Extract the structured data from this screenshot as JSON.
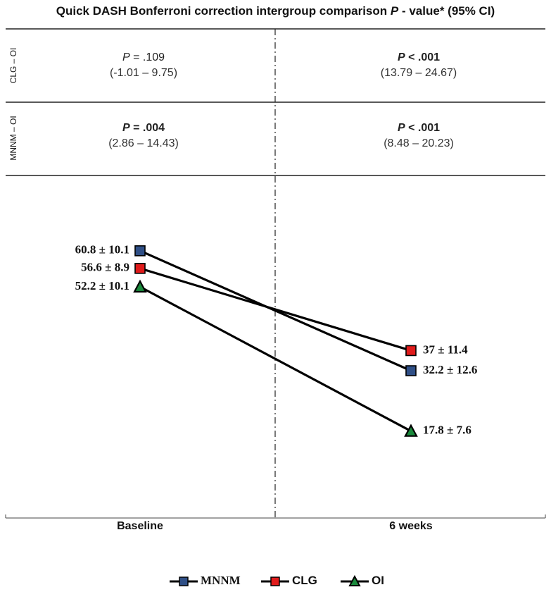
{
  "header": {
    "title_pre": "Quick DASH Bonferroni correction intergroup comparison ",
    "title_p": "P",
    "title_post": " - value* (95% CI)"
  },
  "comparison_table": {
    "rows": [
      {
        "label": "CLG – OI",
        "baseline": {
          "p_letter": "P",
          "p_rest": " = .109",
          "bold": false,
          "ci": "(-1.01 – 9.75)"
        },
        "week6": {
          "p_letter": "P",
          "p_rest": " < .001",
          "bold": true,
          "ci": "(13.79 – 24.67)"
        }
      },
      {
        "label": "MNNM – OI",
        "baseline": {
          "p_letter": "P",
          "p_rest": " = .004",
          "bold": true,
          "ci": "(2.86 – 14.43)"
        },
        "week6": {
          "p_letter": "P",
          "p_rest": " < .001",
          "bold": true,
          "ci": "(8.48 – 20.23)"
        }
      }
    ]
  },
  "chart_data": {
    "type": "line",
    "categories": [
      "Baseline",
      "6 weeks"
    ],
    "series": [
      {
        "name": "MNNM",
        "values": [
          60.8,
          32.2
        ],
        "labels": [
          "60.8 ± 10.1",
          "32.2 ± 12.6"
        ],
        "color": "#2f4f86",
        "marker": "square"
      },
      {
        "name": "CLG",
        "values": [
          56.6,
          37
        ],
        "labels": [
          "56.6 ± 8.9",
          "37 ± 11.4"
        ],
        "color": "#e01b1b",
        "marker": "square"
      },
      {
        "name": "OI",
        "values": [
          52.2,
          17.8
        ],
        "labels": [
          "52.2 ± 10.1",
          "17.8 ± 7.6"
        ],
        "color": "#1a8a3c",
        "marker": "triangle"
      }
    ],
    "ylim": [
      0,
      80
    ],
    "grid": false,
    "legend": "bottom-center"
  }
}
